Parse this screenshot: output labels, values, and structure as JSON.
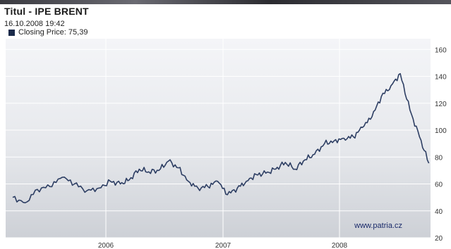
{
  "header": {
    "title": "Titul - IPE BRENT",
    "timestamp": "16.10.2008 19:42",
    "legend_label": "Closing Price: 75,39"
  },
  "watermark": "www.patria.cz",
  "colors": {
    "line": "#2d3e63",
    "grid": "#ffffff",
    "legend_swatch": "#1a2a4a"
  },
  "chart_data": {
    "type": "line",
    "x_axis": {
      "ticks": [
        "2006",
        "2007",
        "2008"
      ]
    },
    "y_axis": {
      "ticks": [
        20,
        40,
        60,
        80,
        100,
        120,
        140,
        160
      ],
      "position": "right"
    },
    "ylim": [
      20,
      168
    ],
    "grid": true,
    "legend_placement": "top-left",
    "series": [
      {
        "name": "Closing Price: 75,39",
        "x": [
          "2005-05",
          "2005-06",
          "2005-07",
          "2005-08",
          "2005-09",
          "2005-10",
          "2005-11",
          "2005-12",
          "2006-01",
          "2006-02",
          "2006-03",
          "2006-04",
          "2006-05",
          "2006-06",
          "2006-07",
          "2006-08",
          "2006-09",
          "2006-10",
          "2006-11",
          "2006-12",
          "2007-01",
          "2007-02",
          "2007-03",
          "2007-04",
          "2007-05",
          "2007-06",
          "2007-07",
          "2007-08",
          "2007-09",
          "2007-10",
          "2007-11",
          "2007-12",
          "2008-01",
          "2008-02",
          "2008-03",
          "2008-04",
          "2008-05",
          "2008-06",
          "2008-07",
          "2008-08",
          "2008-09",
          "2008-10"
        ],
        "y": [
          50,
          46,
          56,
          58,
          65,
          60,
          55,
          57,
          62,
          60,
          63,
          71,
          69,
          70,
          77,
          72,
          62,
          57,
          58,
          62,
          52,
          57,
          62,
          67,
          68,
          71,
          76,
          71,
          78,
          82,
          90,
          92,
          94,
          95,
          102,
          110,
          125,
          133,
          142,
          115,
          95,
          75.39
        ]
      }
    ]
  }
}
